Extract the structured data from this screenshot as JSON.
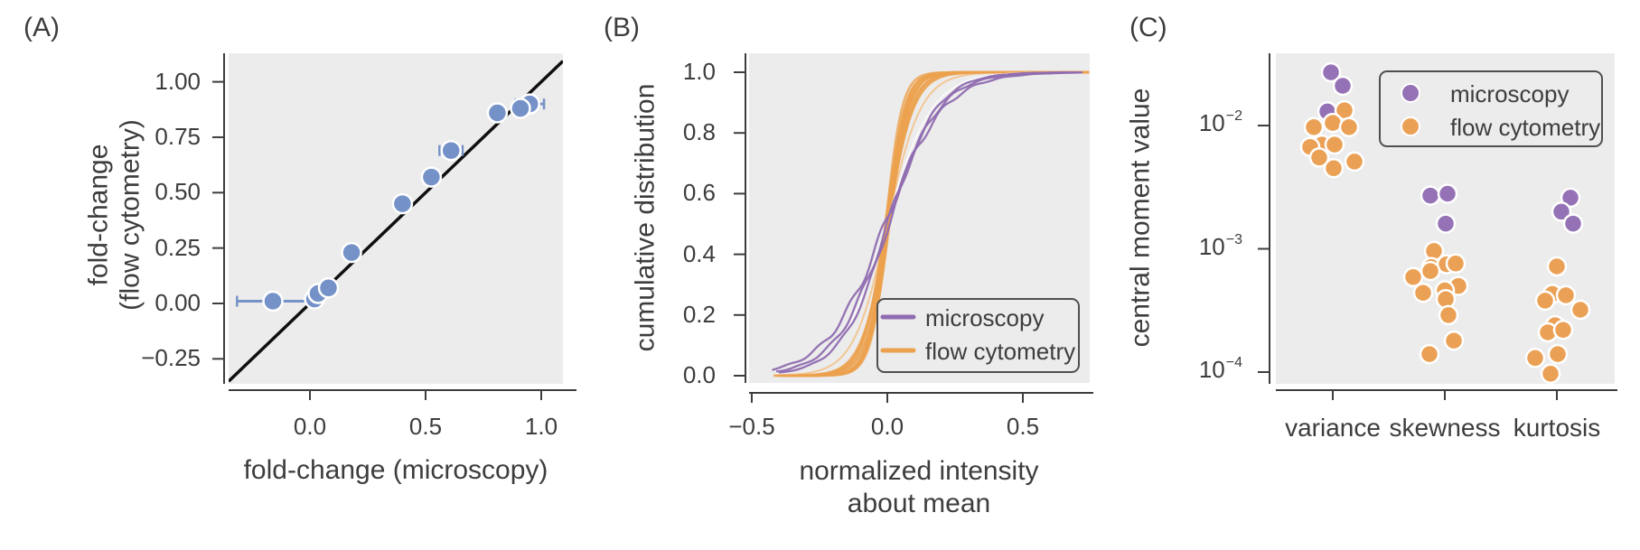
{
  "colors": {
    "panel_bg": "#ececec",
    "axis": "#3d3d3d",
    "scatter_blue": "#7592c8",
    "curve_orange": "#eca14e",
    "curve_orange_light": "#f3c38b",
    "curve_white": "#fafafa",
    "curve_purple": "#8f6cb0",
    "dot_purple": "#9572b5",
    "dot_orange": "#eba155",
    "identity_line": "#0f0f0f",
    "legend_border": "#4f4f4f",
    "point_outline": "#ffffff"
  },
  "panels": {
    "a": {
      "label": "(A)",
      "y_title_line1": "fold-change",
      "y_title_line2": "(flow cytometry)",
      "x_title": "fold-change (microscopy)"
    },
    "b": {
      "label": "(B)",
      "y_title": "cumulative distribution",
      "x_title_line1": "normalized intensity",
      "x_title_line2": "about mean",
      "legend": {
        "items": [
          {
            "label": "microscopy"
          },
          {
            "label": "flow cytometry"
          }
        ]
      }
    },
    "c": {
      "label": "(C)",
      "y_title": "central moment value",
      "legend": {
        "items": [
          {
            "label": "microscopy"
          },
          {
            "label": "flow cytometry"
          }
        ]
      }
    }
  },
  "chart_data": [
    {
      "panel": "A",
      "type": "scatter",
      "xlabel": "fold-change (microscopy)",
      "ylabel": "fold-change (flow cytometry)",
      "xlim": [
        -0.36,
        1.09
      ],
      "ylim": [
        -0.36,
        1.13
      ],
      "x_ticks": [
        {
          "label": "0.0",
          "v": 0.0
        },
        {
          "label": "0.5",
          "v": 0.5
        },
        {
          "label": "1.0",
          "v": 1.0
        }
      ],
      "y_ticks": [
        {
          "label": "1.00",
          "v": 1.0
        },
        {
          "label": "0.75",
          "v": 0.75
        },
        {
          "label": "0.50",
          "v": 0.5
        },
        {
          "label": "0.25",
          "v": 0.25
        },
        {
          "label": "0.00",
          "v": 0.0
        },
        {
          "label": "−0.25",
          "v": -0.25
        }
      ],
      "identity_line": true,
      "points": [
        {
          "x": -0.16,
          "y": 0.01,
          "xerr": 0.155
        },
        {
          "x": 0.02,
          "y": 0.02
        },
        {
          "x": 0.035,
          "y": 0.045
        },
        {
          "x": 0.08,
          "y": 0.07
        },
        {
          "x": 0.18,
          "y": 0.23
        },
        {
          "x": 0.4,
          "y": 0.45
        },
        {
          "x": 0.525,
          "y": 0.57
        },
        {
          "x": 0.61,
          "y": 0.69,
          "xerr": 0.05
        },
        {
          "x": 0.81,
          "y": 0.86,
          "xerr": 0.03
        },
        {
          "x": 0.95,
          "y": 0.9,
          "xerr": 0.062
        },
        {
          "x": 0.91,
          "y": 0.88,
          "xerr": 0.03
        }
      ]
    },
    {
      "panel": "B",
      "type": "line",
      "subtype": "empirical-cdf",
      "xlabel": "normalized intensity about mean",
      "ylabel": "cumulative distribution",
      "xlim": [
        -0.51,
        0.747
      ],
      "ylim": [
        0,
        1
      ],
      "x_ticks": [
        {
          "label": "−0.5",
          "v": -0.5
        },
        {
          "label": "0.0",
          "v": 0.0
        },
        {
          "label": "0.5",
          "v": 0.5
        }
      ],
      "y_ticks": [
        {
          "label": "1.0",
          "v": 1.0
        },
        {
          "label": "0.8",
          "v": 0.8
        },
        {
          "label": "0.6",
          "v": 0.6
        },
        {
          "label": "0.4",
          "v": 0.4
        },
        {
          "label": "0.2",
          "v": 0.2
        },
        {
          "label": "0.0",
          "v": 0.0
        }
      ],
      "legend_position": "lower right",
      "series": [
        {
          "name": "flow cytometry (light)",
          "color_key": "curve_orange_light",
          "width": 2,
          "opacity": 0.9,
          "curves": [
            {
              "x0": 0.0,
              "scale": 0.062,
              "xmin": -0.42,
              "xmax": 0.747
            }
          ]
        },
        {
          "name": "flow cytometry",
          "color_key": "curve_orange",
          "width": 2.6,
          "opacity": 0.8,
          "curves": [
            {
              "x0": -0.006,
              "scale": 0.03,
              "xmin": -0.34,
              "xmax": 0.747
            },
            {
              "x0": 0.004,
              "scale": 0.032,
              "xmin": -0.36,
              "xmax": 0.747
            },
            {
              "x0": -0.002,
              "scale": 0.034,
              "xmin": -0.38,
              "xmax": 0.747
            },
            {
              "x0": 0.008,
              "scale": 0.036,
              "xmin": -0.33,
              "xmax": 0.747
            },
            {
              "x0": 0.0,
              "scale": 0.038,
              "xmin": -0.4,
              "xmax": 0.747
            },
            {
              "x0": -0.008,
              "scale": 0.04,
              "xmin": -0.37,
              "xmax": 0.747
            },
            {
              "x0": 0.005,
              "scale": 0.042,
              "xmin": -0.35,
              "xmax": 0.747
            },
            {
              "x0": -0.004,
              "scale": 0.044,
              "xmin": -0.42,
              "xmax": 0.747
            },
            {
              "x0": 0.002,
              "scale": 0.046,
              "xmin": -0.39,
              "xmax": 0.747
            },
            {
              "x0": 0.006,
              "scale": 0.035,
              "xmin": -0.36,
              "xmax": 0.747
            },
            {
              "x0": -0.003,
              "scale": 0.033,
              "xmin": -0.41,
              "xmax": 0.747
            },
            {
              "x0": 0.001,
              "scale": 0.048,
              "xmin": -0.38,
              "xmax": 0.747
            }
          ]
        },
        {
          "name": "mean curve",
          "color_key": "curve_white",
          "width": 1.8,
          "opacity": 0.95,
          "curves": [
            {
              "x0": -0.004,
              "scale": 0.085,
              "xmin": -0.41,
              "xmax": 0.7
            }
          ]
        },
        {
          "name": "microscopy",
          "color_key": "curve_purple",
          "width": 2.3,
          "opacity": 0.95,
          "curves": [
            {
              "x0": -0.008,
              "scale": 0.108,
              "xmin": -0.425,
              "xmax": 0.7,
              "wiggle": 0.018,
              "seed": 3
            },
            {
              "x0": 0.0,
              "scale": 0.096,
              "xmin": -0.41,
              "xmax": 0.72,
              "wiggle": 0.015,
              "seed": 7
            },
            {
              "x0": 0.006,
              "scale": 0.088,
              "xmin": -0.4,
              "xmax": 0.71,
              "wiggle": 0.012,
              "seed": 11
            }
          ]
        }
      ]
    },
    {
      "panel": "C",
      "type": "scatter",
      "subtype": "strip-log",
      "ylabel": "central moment value",
      "categories": [
        "variance",
        "skewness",
        "kurtosis"
      ],
      "y_ticks": [
        {
          "base": "10",
          "exp": "−2",
          "v": 0.01
        },
        {
          "base": "10",
          "exp": "−3",
          "v": 0.001
        },
        {
          "base": "10",
          "exp": "−4",
          "v": 0.0001
        }
      ],
      "legend_position": "upper right",
      "points": [
        {
          "category": "variance",
          "group": "microscopy",
          "value": 0.027,
          "dx": -2
        },
        {
          "category": "variance",
          "group": "microscopy",
          "value": 0.021,
          "dx": 11
        },
        {
          "category": "variance",
          "group": "microscopy",
          "value": 0.013,
          "dx": -6
        },
        {
          "category": "variance",
          "group": "flow cytometry",
          "value": 0.0133,
          "dx": 13
        },
        {
          "category": "variance",
          "group": "flow cytometry",
          "value": 0.0105,
          "dx": 0
        },
        {
          "category": "variance",
          "group": "flow cytometry",
          "value": 0.0097,
          "dx": -21
        },
        {
          "category": "variance",
          "group": "flow cytometry",
          "value": 0.0097,
          "dx": 18
        },
        {
          "category": "variance",
          "group": "flow cytometry",
          "value": 0.007,
          "dx": -12
        },
        {
          "category": "variance",
          "group": "flow cytometry",
          "value": 0.0067,
          "dx": -25
        },
        {
          "category": "variance",
          "group": "flow cytometry",
          "value": 0.007,
          "dx": 2
        },
        {
          "category": "variance",
          "group": "flow cytometry",
          "value": 0.0055,
          "dx": -15
        },
        {
          "category": "variance",
          "group": "flow cytometry",
          "value": 0.0051,
          "dx": 24
        },
        {
          "category": "variance",
          "group": "flow cytometry",
          "value": 0.0045,
          "dx": 1
        },
        {
          "category": "skewness",
          "group": "microscopy",
          "value": 0.0027,
          "dx": -16
        },
        {
          "category": "skewness",
          "group": "microscopy",
          "value": 0.0028,
          "dx": 3
        },
        {
          "category": "skewness",
          "group": "microscopy",
          "value": 0.0016,
          "dx": 1
        },
        {
          "category": "skewness",
          "group": "flow cytometry",
          "value": 0.00096,
          "dx": -12
        },
        {
          "category": "skewness",
          "group": "flow cytometry",
          "value": 0.00071,
          "dx": -15
        },
        {
          "category": "skewness",
          "group": "flow cytometry",
          "value": 0.00075,
          "dx": 2
        },
        {
          "category": "skewness",
          "group": "flow cytometry",
          "value": 0.00076,
          "dx": 12
        },
        {
          "category": "skewness",
          "group": "flow cytometry",
          "value": 0.00059,
          "dx": -35
        },
        {
          "category": "skewness",
          "group": "flow cytometry",
          "value": 0.00066,
          "dx": -16
        },
        {
          "category": "skewness",
          "group": "flow cytometry",
          "value": 0.0005,
          "dx": 15
        },
        {
          "category": "skewness",
          "group": "flow cytometry",
          "value": 0.00044,
          "dx": -24
        },
        {
          "category": "skewness",
          "group": "flow cytometry",
          "value": 0.00046,
          "dx": 0
        },
        {
          "category": "skewness",
          "group": "flow cytometry",
          "value": 0.00039,
          "dx": 1
        },
        {
          "category": "skewness",
          "group": "flow cytometry",
          "value": 0.00029,
          "dx": 4
        },
        {
          "category": "skewness",
          "group": "flow cytometry",
          "value": 0.00018,
          "dx": 10
        },
        {
          "category": "skewness",
          "group": "flow cytometry",
          "value": 0.00014,
          "dx": -17
        },
        {
          "category": "kurtosis",
          "group": "microscopy",
          "value": 0.0026,
          "dx": 15
        },
        {
          "category": "kurtosis",
          "group": "microscopy",
          "value": 0.002,
          "dx": 5
        },
        {
          "category": "kurtosis",
          "group": "microscopy",
          "value": 0.0016,
          "dx": 18
        },
        {
          "category": "kurtosis",
          "group": "flow cytometry",
          "value": 0.00072,
          "dx": 0
        },
        {
          "category": "kurtosis",
          "group": "flow cytometry",
          "value": 0.00043,
          "dx": -5
        },
        {
          "category": "kurtosis",
          "group": "flow cytometry",
          "value": 0.00038,
          "dx": -13
        },
        {
          "category": "kurtosis",
          "group": "flow cytometry",
          "value": 0.00042,
          "dx": 10
        },
        {
          "category": "kurtosis",
          "group": "flow cytometry",
          "value": 0.00032,
          "dx": 26
        },
        {
          "category": "kurtosis",
          "group": "flow cytometry",
          "value": 0.00024,
          "dx": -2
        },
        {
          "category": "kurtosis",
          "group": "flow cytometry",
          "value": 0.00021,
          "dx": -10
        },
        {
          "category": "kurtosis",
          "group": "flow cytometry",
          "value": 0.00022,
          "dx": 7
        },
        {
          "category": "kurtosis",
          "group": "flow cytometry",
          "value": 0.00013,
          "dx": -24
        },
        {
          "category": "kurtosis",
          "group": "flow cytometry",
          "value": 0.00014,
          "dx": 1
        },
        {
          "category": "kurtosis",
          "group": "flow cytometry",
          "value": 9.7e-05,
          "dx": -7
        }
      ]
    }
  ]
}
